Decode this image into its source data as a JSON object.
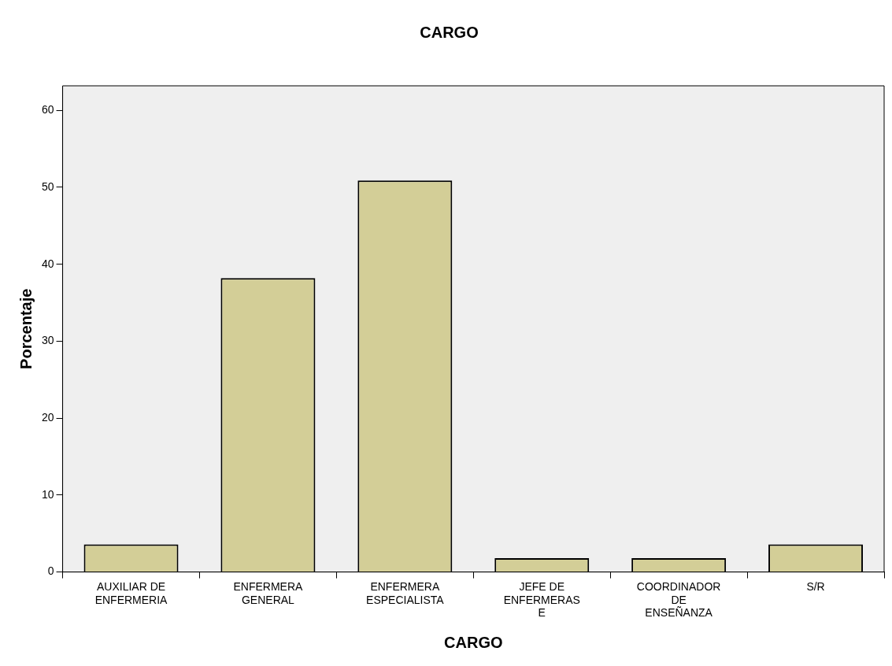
{
  "chart_data": {
    "type": "bar",
    "title": "CARGO",
    "xlabel": "CARGO",
    "ylabel": "Porcentaje",
    "categories": [
      "AUXILIAR DE ENFERMERIA",
      "ENFERMERA GENERAL",
      "ENFERMERA ESPECIALISTA",
      "JEFE DE ENFERMERAS E",
      "COORDINADOR DE ENSEÑANZA",
      "S/R"
    ],
    "values": [
      3.6,
      38.2,
      50.9,
      1.8,
      1.8,
      3.6
    ],
    "color": "#d3ce97",
    "ylim": [
      0,
      63.2
    ],
    "yticks": [
      0,
      10,
      20,
      30,
      40,
      50,
      60
    ],
    "legend": false
  }
}
